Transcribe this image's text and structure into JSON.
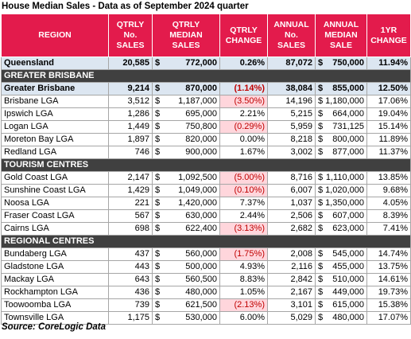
{
  "title": "House Median Sales - Data as of September 2024 quarter",
  "currency": "$",
  "table": {
    "headers": [
      [
        "REGION"
      ],
      [
        "QTRLY",
        "No.",
        "SALES"
      ],
      [
        "QTRLY",
        "MEDIAN",
        "SALES"
      ],
      [
        "QTRLY",
        "CHANGE"
      ],
      [
        "ANNUAL",
        "No.",
        "SALES"
      ],
      [
        "ANNUAL",
        "MEDIAN SALE"
      ],
      [
        "1YR",
        "CHANGE"
      ]
    ],
    "rows": [
      {
        "style": "total",
        "cells": [
          "Queensland",
          "20,585",
          "772,000",
          "0.26%",
          "87,072",
          "750,000",
          "11.94%"
        ]
      },
      {
        "style": "section",
        "cells": [
          "GREATER BRISBANE"
        ]
      },
      {
        "style": "total",
        "cells": [
          "Greater Brisbane",
          "9,214",
          "870,000",
          "(1.14%)",
          "38,084",
          "855,000",
          "12.50%"
        ]
      },
      {
        "style": "row",
        "cells": [
          "Brisbane LGA",
          "3,512",
          "1,187,000",
          "(3.50%)",
          "14,196",
          "1,180,000",
          "17.06%"
        ]
      },
      {
        "style": "row",
        "cells": [
          "Ipswich LGA",
          "1,286",
          "695,000",
          "2.21%",
          "5,215",
          "664,000",
          "19.04%"
        ]
      },
      {
        "style": "row",
        "cells": [
          "Logan LGA",
          "1,449",
          "750,800",
          "(0.29%)",
          "5,959",
          "731,125",
          "15.14%"
        ]
      },
      {
        "style": "row",
        "cells": [
          "Moreton Bay LGA",
          "1,897",
          "820,000",
          "0.00%",
          "8,218",
          "800,000",
          "11.89%"
        ]
      },
      {
        "style": "row",
        "cells": [
          "Redland LGA",
          "746",
          "900,000",
          "1.67%",
          "3,002",
          "877,000",
          "11.37%"
        ]
      },
      {
        "style": "section",
        "cells": [
          "TOURISM CENTRES"
        ]
      },
      {
        "style": "row",
        "cells": [
          "Gold Coast LGA",
          "2,147",
          "1,092,500",
          "(5.00%)",
          "8,716",
          "1,110,000",
          "13.85%"
        ]
      },
      {
        "style": "row",
        "cells": [
          "Sunshine Coast LGA",
          "1,429",
          "1,049,000",
          "(0.10%)",
          "6,007",
          "1,020,000",
          "9.68%"
        ]
      },
      {
        "style": "row",
        "cells": [
          "Noosa LGA",
          "221",
          "1,420,000",
          "7.37%",
          "1,037",
          "1,350,000",
          "4.05%"
        ]
      },
      {
        "style": "row",
        "cells": [
          "Fraser Coast LGA",
          "567",
          "630,000",
          "2.44%",
          "2,506",
          "607,000",
          "8.39%"
        ]
      },
      {
        "style": "row",
        "cells": [
          "Cairns LGA",
          "698",
          "622,400",
          "(3.13%)",
          "2,682",
          "623,000",
          "7.41%"
        ]
      },
      {
        "style": "section",
        "cells": [
          "REGIONAL CENTRES"
        ]
      },
      {
        "style": "row",
        "cells": [
          "Bundaberg LGA",
          "437",
          "560,000",
          "(1.75%)",
          "2,008",
          "545,000",
          "14.74%"
        ]
      },
      {
        "style": "row",
        "cells": [
          "Gladstone LGA",
          "443",
          "500,000",
          "4.93%",
          "2,116",
          "455,000",
          "13.75%"
        ]
      },
      {
        "style": "row",
        "cells": [
          "Mackay LGA",
          "643",
          "560,500",
          "8.83%",
          "2,842",
          "510,000",
          "14.61%"
        ]
      },
      {
        "style": "row",
        "cells": [
          "Rockhampton LGA",
          "436",
          "480,000",
          "1.05%",
          "2,167",
          "449,000",
          "19.73%"
        ]
      },
      {
        "style": "row",
        "cells": [
          "Toowoomba LGA",
          "739",
          "621,500",
          "(2.13%)",
          "3,101",
          "615,000",
          "15.38%"
        ]
      },
      {
        "style": "row",
        "cells": [
          "Townsville LGA",
          "1,175",
          "530,000",
          "6.00%",
          "5,029",
          "480,000",
          "17.07%"
        ]
      }
    ]
  },
  "source": "Source: CoreLogic Data"
}
